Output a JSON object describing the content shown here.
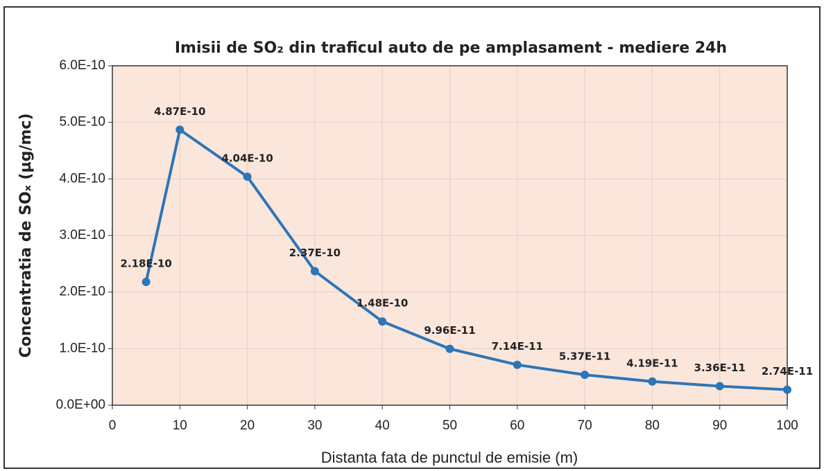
{
  "chart_data": {
    "type": "line",
    "title": "Imisii de SO₂ din traficul auto de pe amplasament - mediere 24h",
    "x_label": "Distanta fata de punctul de emisie (m)",
    "y_label": "Concentratia de SOₓ (µg/mc)",
    "x": [
      5,
      10,
      20,
      30,
      40,
      50,
      60,
      70,
      80,
      90,
      100
    ],
    "series": [
      {
        "name": "SO2",
        "color": "#2e75b6",
        "values": [
          2.18e-10,
          4.87e-10,
          4.04e-10,
          2.37e-10,
          1.48e-10,
          9.96e-11,
          7.14e-11,
          5.37e-11,
          4.19e-11,
          3.36e-11,
          2.74e-11
        ],
        "value_labels": [
          "2.18E-10",
          "4.87E-10",
          "4.04E-10",
          "2.37E-10",
          "1.48E-10",
          "9.96E-11",
          "7.14E-11",
          "5.37E-11",
          "4.19E-11",
          "3.36E-11",
          "2.74E-11"
        ]
      }
    ],
    "xlim": [
      0,
      100
    ],
    "xticks": [
      0,
      10,
      20,
      30,
      40,
      50,
      60,
      70,
      80,
      90,
      100
    ],
    "ylim": [
      0,
      6e-10
    ],
    "yticks": [
      {
        "value": 0,
        "label": "0.0E+00"
      },
      {
        "value": 1e-10,
        "label": "1.0E-10"
      },
      {
        "value": 2e-10,
        "label": "2.0E-10"
      },
      {
        "value": 3e-10,
        "label": "3.0E-10"
      },
      {
        "value": 4e-10,
        "label": "4.0E-10"
      },
      {
        "value": 5e-10,
        "label": "5.0E-10"
      },
      {
        "value": 6e-10,
        "label": "6.0E-10"
      }
    ],
    "grid": true
  }
}
